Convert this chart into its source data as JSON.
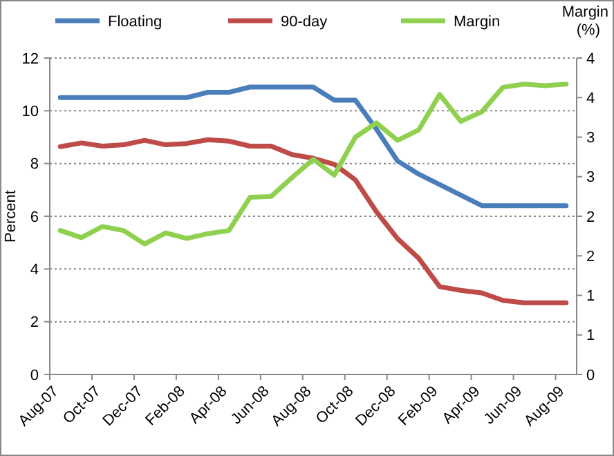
{
  "chart_data": {
    "type": "line",
    "ylabel": "Percent",
    "y2label": "Margin (%)",
    "categories": [
      "Aug-07",
      null,
      "Oct-07",
      null,
      "Dec-07",
      null,
      "Feb-08",
      null,
      "Apr-08",
      null,
      "Jun-08",
      null,
      "Aug-08",
      null,
      "Oct-08",
      null,
      "Dec-08",
      null,
      "Feb-09",
      null,
      "Apr-09",
      null,
      "Jun-09",
      null,
      "Aug-09"
    ],
    "series": [
      {
        "name": "Floating",
        "color": "#4a7ebb",
        "values": [
          10.5,
          10.5,
          10.5,
          10.5,
          10.5,
          10.5,
          10.5,
          10.7,
          10.7,
          10.9,
          10.9,
          10.9,
          10.9,
          10.4,
          10.4,
          9.3,
          8.1,
          7.6,
          7.2,
          6.8,
          6.4,
          6.4,
          6.4,
          6.4,
          6.4
        ]
      },
      {
        "name": "90-day",
        "color": "#be4b48",
        "values": [
          8.64,
          8.78,
          8.66,
          8.71,
          8.88,
          8.71,
          8.76,
          8.9,
          8.85,
          8.66,
          8.66,
          8.34,
          8.2,
          7.97,
          7.38,
          6.17,
          5.15,
          4.41,
          3.33,
          3.19,
          3.09,
          2.81,
          2.72,
          2.72,
          2.72
        ]
      },
      {
        "name": "Margin",
        "color": "#8fd14f",
        "axis": "y2",
        "values": [
          1.82,
          1.73,
          1.87,
          1.82,
          1.65,
          1.79,
          1.72,
          1.78,
          1.82,
          2.24,
          2.25,
          2.49,
          2.72,
          2.52,
          3.0,
          3.18,
          2.96,
          3.09,
          3.54,
          3.2,
          3.32,
          3.63,
          3.67,
          3.65,
          3.67
        ]
      }
    ],
    "ylim": [
      0,
      12
    ],
    "yticks": [
      0,
      2,
      4,
      6,
      8,
      10,
      12
    ],
    "y2lim": [
      0,
      4
    ],
    "y2ticks": [
      0,
      {
        "value": 0.5,
        "label": "1"
      },
      1,
      {
        "value": 1.5,
        "label": "2"
      },
      2,
      {
        "value": 2.5,
        "label": "3"
      },
      3,
      {
        "value": 3.5,
        "label": "4"
      },
      4
    ],
    "grid": "y",
    "legend": "top",
    "marker": "none",
    "line_style": "solid"
  }
}
